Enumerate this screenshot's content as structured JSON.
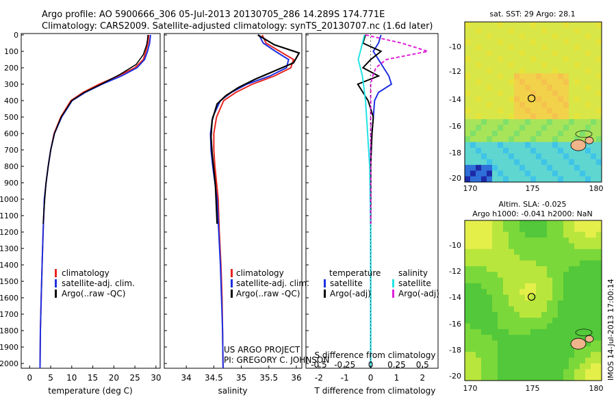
{
  "header": {
    "line1": "Argo profile: AO 5900666_306 05-Jul-2013 20130705_286 14.289S 174.771E",
    "line2": "Climatology: CARS2009. Satellite-adjusted climatology: synTS_20130707.nc (1.6d later)"
  },
  "colors": {
    "climatology": "#e8231e",
    "satellite": "#1c2fe0",
    "argo": "#000000",
    "sat_salinity": "#22e3e3",
    "argo_salinity": "#e020d8"
  },
  "depth_ticks": [
    0,
    100,
    200,
    300,
    400,
    500,
    600,
    700,
    800,
    900,
    1000,
    1100,
    1200,
    1300,
    1400,
    1500,
    1600,
    1700,
    1800,
    1900,
    2000
  ],
  "chart_data": [
    {
      "type": "line",
      "name": "temperature",
      "xlabel": "temperature (deg C)",
      "ylabel": "depth",
      "xlim": [
        -2,
        31
      ],
      "ylim": [
        2070,
        0
      ],
      "xticks": [
        0,
        5,
        10,
        15,
        20,
        25,
        30
      ],
      "legend": [
        "climatology",
        "satellite-adj. clim.",
        "Argo(..raw -QC)"
      ],
      "series": [
        {
          "name": "climatology",
          "x": [
            28.3,
            28.1,
            27.6,
            27.0,
            25.0,
            21.0,
            16.5,
            12.7,
            9.8,
            7.4,
            5.8,
            5.0,
            4.4,
            3.9,
            3.5,
            3.2,
            2.95,
            2.75,
            2.55,
            2.45
          ],
          "y": [
            0,
            50,
            100,
            150,
            200,
            250,
            300,
            350,
            400,
            500,
            600,
            700,
            800,
            900,
            1000,
            1200,
            1400,
            1600,
            1800,
            2060
          ]
        },
        {
          "name": "satellite-adj. clim.",
          "x": [
            28.7,
            28.5,
            28.0,
            27.3,
            25.5,
            21.8,
            17.2,
            13.2,
            10.1,
            7.6,
            5.9,
            5.0,
            4.4,
            3.9,
            3.5,
            3.2,
            2.95,
            2.75,
            2.55,
            2.45
          ],
          "y": [
            0,
            50,
            100,
            150,
            200,
            250,
            300,
            350,
            400,
            500,
            600,
            700,
            800,
            900,
            1000,
            1200,
            1400,
            1600,
            1800,
            2060
          ]
        },
        {
          "name": "Argo(..raw -QC)",
          "x": [
            28.1,
            28.0,
            27.8,
            27.0,
            25.3,
            21.5,
            17.0,
            13.0,
            10.0,
            7.5,
            5.9,
            5.0,
            4.4,
            3.9,
            3.6,
            3.2
          ],
          "y": [
            0,
            30,
            60,
            120,
            180,
            240,
            300,
            350,
            400,
            500,
            600,
            700,
            800,
            900,
            1000,
            1150
          ]
        }
      ]
    },
    {
      "type": "line",
      "name": "salinity",
      "xlabel": "salinity",
      "xlim": [
        33.6,
        36.1
      ],
      "ylim": [
        2070,
        0
      ],
      "xticks": [
        34,
        34.5,
        35,
        35.5,
        36
      ],
      "xticklabels": [
        "34",
        "34.5",
        "35",
        "35.5",
        "36"
      ],
      "legend": [
        "climatology",
        "satellite-adj. clim.",
        "Argo(..raw -QC)"
      ],
      "series": [
        {
          "name": "climatology",
          "x": [
            35.38,
            35.45,
            35.7,
            35.95,
            35.9,
            35.6,
            35.2,
            34.9,
            34.68,
            34.55,
            34.5,
            34.5,
            34.52,
            34.55,
            34.58,
            34.6,
            34.63,
            34.65,
            34.66,
            34.67
          ],
          "y": [
            0,
            50,
            100,
            150,
            200,
            250,
            300,
            350,
            400,
            500,
            600,
            700,
            800,
            900,
            1000,
            1200,
            1400,
            1600,
            1800,
            2060
          ]
        },
        {
          "name": "satellite-adj. clim.",
          "x": [
            35.32,
            35.4,
            35.62,
            35.86,
            35.82,
            35.52,
            35.1,
            34.82,
            34.62,
            34.48,
            34.44,
            34.45,
            34.48,
            34.52,
            34.56,
            34.59,
            34.62,
            34.64,
            34.66,
            34.67
          ],
          "y": [
            0,
            50,
            100,
            150,
            200,
            250,
            300,
            350,
            400,
            500,
            600,
            700,
            800,
            900,
            1000,
            1200,
            1400,
            1600,
            1800,
            2060
          ]
        },
        {
          "name": "Argo(..raw -QC)",
          "x": [
            35.3,
            35.6,
            36.05,
            35.95,
            35.6,
            35.25,
            34.95,
            34.72,
            34.56,
            34.47,
            34.45,
            34.47,
            34.5,
            34.53,
            34.56
          ],
          "y": [
            0,
            60,
            110,
            170,
            220,
            270,
            320,
            370,
            420,
            520,
            620,
            720,
            820,
            920,
            1150
          ]
        }
      ]
    },
    {
      "type": "line",
      "name": "differences",
      "xlabel_top": "S difference from climatology",
      "xlabel": "T difference from climatology",
      "xlim": [
        -2.5,
        2.6
      ],
      "ylim": [
        2070,
        0
      ],
      "xticks_T": [
        -2,
        -1,
        0,
        1,
        2
      ],
      "xticks_S": [
        -0.5,
        -0.25,
        0,
        0.25,
        0.5
      ],
      "xticklabels_S": [
        "-0.5",
        "-0.25",
        "0",
        "0.25",
        "0.5"
      ],
      "legend_left_title": "temperature",
      "legend_right_title": "salinity",
      "legend": [
        "satellite",
        "Argo(-adj)",
        "satellite",
        "Argo(-adj)"
      ],
      "series": [
        {
          "name": "T satellite",
          "x": [
            0.4,
            0.3,
            0.1,
            0.3,
            0.5,
            0.7,
            0.8,
            0.3,
            0.15,
            0.1,
            0.05,
            0.0,
            0.0,
            0.0,
            0.0,
            0.0,
            0.0
          ],
          "y": [
            0,
            50,
            100,
            150,
            200,
            250,
            300,
            350,
            400,
            500,
            600,
            700,
            800,
            1000,
            1200,
            1600,
            2060
          ]
        },
        {
          "name": "T Argo(-adj)",
          "x": [
            -0.2,
            -0.3,
            0.4,
            0.0,
            -0.3,
            0.3,
            -0.5,
            -0.3,
            -0.1,
            0.1,
            0.05,
            0.0,
            0.0,
            0.0
          ],
          "y": [
            0,
            50,
            100,
            150,
            200,
            250,
            300,
            350,
            400,
            500,
            600,
            800,
            1000,
            1150
          ]
        },
        {
          "name": "S satellite",
          "x": [
            -0.06,
            -0.08,
            -0.1,
            -0.12,
            -0.1,
            -0.08,
            -0.07,
            -0.06,
            -0.05,
            -0.04,
            -0.03,
            -0.01,
            0.0,
            0.0
          ],
          "y": [
            0,
            50,
            100,
            150,
            200,
            250,
            300,
            350,
            400,
            500,
            600,
            800,
            1200,
            2060
          ]
        },
        {
          "name": "S Argo(-adj)",
          "x": [
            -0.05,
            0.3,
            0.55,
            0.15,
            0.05,
            0.02,
            0.0,
            0.0,
            0.0,
            0.0,
            0.0,
            0.0,
            0.0
          ],
          "y": [
            0,
            50,
            100,
            150,
            200,
            250,
            300,
            400,
            500,
            600,
            800,
            1000,
            1150
          ]
        }
      ]
    }
  ],
  "credits": {
    "line1": "US ARGO PROJECT",
    "line2": "PI: GREGORY C. JOHNSON"
  },
  "maps": {
    "sst": {
      "title": "sat. SST: 29 Argo: 28.1",
      "xticks": [
        "170",
        "175",
        "180"
      ],
      "yticks": [
        "-10",
        "-12",
        "-14",
        "-16",
        "-18",
        "-20"
      ]
    },
    "sla": {
      "title1": "Altim. SLA: -0.025",
      "title2": "Argo h1000: -0.041 h2000: NaN",
      "xticks": [
        "170",
        "175",
        "180"
      ],
      "yticks": [
        "-10",
        "-12",
        "-14",
        "-16",
        "-18",
        "-20"
      ]
    },
    "float_lon": 174.771,
    "float_lat": -14.289
  },
  "footer": {
    "timestamp": "IMOS 14-Jul-2013 17:00:14"
  }
}
